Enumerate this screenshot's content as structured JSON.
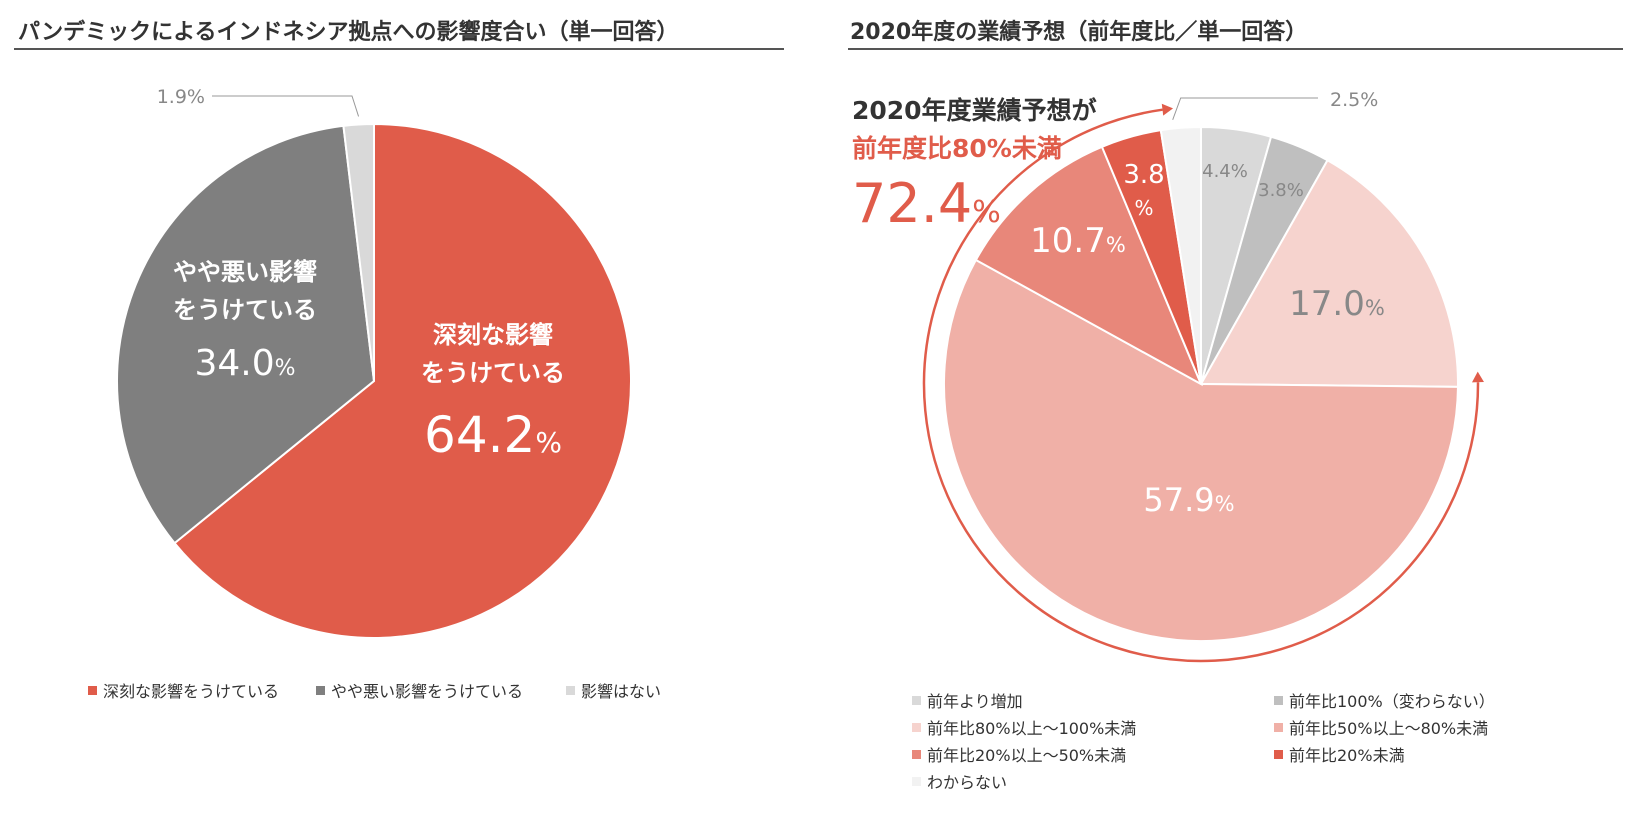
{
  "chart_data": [
    {
      "type": "pie",
      "title": "パンデミックによるインドネシア拠点への影響度合い（単一回答）",
      "slices": [
        {
          "label": "深刻な影響をうけている",
          "value": 64.2,
          "display": "64.2",
          "slice_label_lines": [
            "深刻な影響",
            "をうけている"
          ],
          "color": "#e05c4a",
          "text_color": "#ffffff"
        },
        {
          "label": "やや悪い影響をうけている",
          "value": 34.0,
          "display": "34.0",
          "slice_label_lines": [
            "やや悪い影響",
            "をうけている"
          ],
          "color": "#7f7f7f",
          "text_color": "#ffffff"
        },
        {
          "label": "影響はない",
          "value": 1.9,
          "display": "1.9%",
          "slice_label_lines": [],
          "color": "#d9d9d9",
          "text_color": "#888888"
        }
      ],
      "legend": [
        "深刻な影響をうけている",
        "やや悪い影響をうけている",
        "影響はない"
      ],
      "legend_placement": "bottom"
    },
    {
      "type": "pie",
      "title": "2020年度の業績予想（前年度比／単一回答）",
      "slices": [
        {
          "label": "前年より増加",
          "value": 4.4,
          "display": "4.4%",
          "color": "#d9d9d9",
          "text_color": "#888888"
        },
        {
          "label": "前年比100%（変わらない）",
          "value": 3.8,
          "display": "3.8%",
          "color": "#bfbfbf",
          "text_color": "#888888"
        },
        {
          "label": "前年比80%以上～100%未満",
          "value": 17.0,
          "display": "17.0",
          "color": "#f6d3ce",
          "text_color": "#888888"
        },
        {
          "label": "前年比50%以上～80%未満",
          "value": 57.9,
          "display": "57.9",
          "color": "#f0b0a7",
          "text_color": "#ffffff"
        },
        {
          "label": "前年比20%以上～50%未満",
          "value": 10.7,
          "display": "10.7",
          "color": "#e8877a",
          "text_color": "#ffffff"
        },
        {
          "label": "前年比20%未満",
          "value": 3.8,
          "display": "3.8",
          "color": "#e05c4a",
          "text_color": "#ffffff"
        },
        {
          "label": "わからない",
          "value": 2.5,
          "display": "2.5%",
          "color": "#f2f2f2",
          "text_color": "#888888"
        }
      ],
      "callout": {
        "line1": "2020年度業績予想が",
        "line2": "前年度比80%未満",
        "value": "72.4",
        "unit": "%"
      },
      "legend": [
        "前年より増加",
        "前年比100%（変わらない）",
        "前年比80%以上～100%未満",
        "前年比50%以上～80%未満",
        "前年比20%以上～50%未満",
        "前年比20%未満",
        "わからない"
      ],
      "legend_placement": "bottom"
    }
  ],
  "units": {
    "percent": "%"
  }
}
